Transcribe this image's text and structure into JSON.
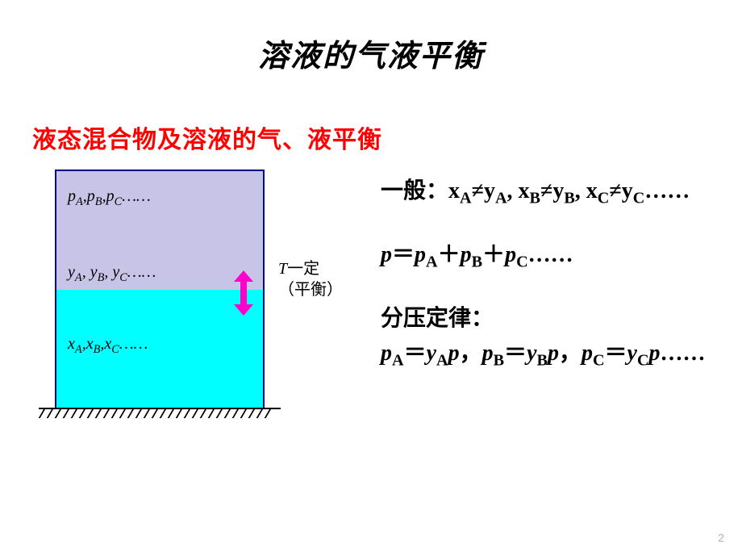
{
  "title": "溶液的气液平衡",
  "subtitle": "液态混合物及溶液的气、液平衡",
  "diagram": {
    "gas_label_html": "<i>p</i><sub>A</sub>,<i>p</i><sub>B</sub>,<i>p</i><sub>C</sub>……",
    "vapor_label_html": "<i>y</i><sub>A</sub>, <i>y</i><sub>B</sub>, <i>y</i><sub>C</sub>……",
    "liquid_label_html": "<i>x</i><sub>A</sub>,<i>x</i><sub>B</sub>,<i>x</i><sub>C</sub>……",
    "temp_label_T": "T",
    "temp_label_text1": "一定",
    "temp_label_text2": "（平衡）",
    "colors": {
      "gas_bg": "#c8c4e8",
      "liquid_bg": "#00ffff",
      "border": "#000080",
      "arrow": "#ff00cc"
    },
    "hatch_count": 29,
    "hatch_spacing": 10
  },
  "equations": {
    "line1_prefix": "一般：",
    "line1_html": "x<sub>A</sub>≠y<sub>A</sub>, x<sub>B</sub>≠y<sub>B</sub>, x<sub>C</sub>≠y<sub>C</sub>……",
    "line2_html": "<i>p</i>＝<i>p</i><sub>A</sub>＋<i>p</i><sub>B</sub>＋<i>p</i><sub>C</sub>……",
    "line3_prefix": "分压定律：",
    "line3_html": "<i>p</i><sub>A</sub>＝<i>y</i><sub>A</sub><i>p</i>，<i>p</i><sub>B</sub>＝<i>y</i><sub>B</sub><i>p</i>，<i>p</i><sub>C</sub>＝<i>y</i><sub>C</sub><i>p</i>……"
  },
  "page_number": "2"
}
